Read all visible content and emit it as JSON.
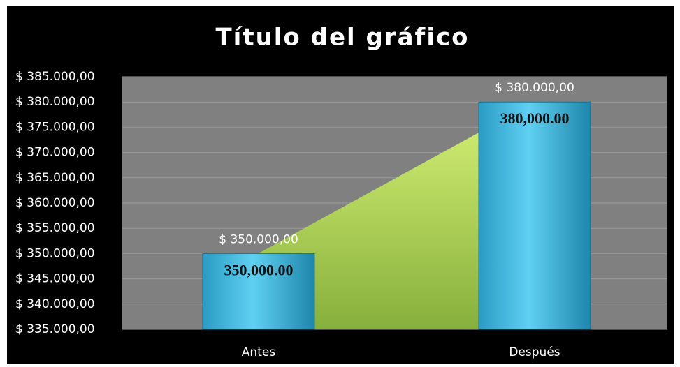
{
  "chart_data": {
    "type": "bar",
    "title": "Título del gráfico",
    "categories": [
      "Antes",
      "Después"
    ],
    "values": [
      350000,
      380000
    ],
    "value_labels": [
      "$ 350.000,00",
      "$ 380.000,00"
    ],
    "inner_labels": [
      "350,000.00",
      "380,000.00"
    ],
    "color": "#3bb4dc",
    "ylim": [
      335000,
      385000
    ],
    "yticks": [
      {
        "value": 335000,
        "label": "$ 335.000,00"
      },
      {
        "value": 340000,
        "label": "$ 340.000,00"
      },
      {
        "value": 345000,
        "label": "$ 345.000,00"
      },
      {
        "value": 350000,
        "label": "$ 350.000,00"
      },
      {
        "value": 355000,
        "label": "$ 355.000,00"
      },
      {
        "value": 360000,
        "label": "$ 360.000,00"
      },
      {
        "value": 365000,
        "label": "$ 365.000,00"
      },
      {
        "value": 370000,
        "label": "$ 370.000,00"
      },
      {
        "value": 375000,
        "label": "$ 375.000,00"
      },
      {
        "value": 380000,
        "label": "$ 380.000,00"
      },
      {
        "value": 385000,
        "label": "$ 385.000,00"
      }
    ],
    "grid": true
  }
}
